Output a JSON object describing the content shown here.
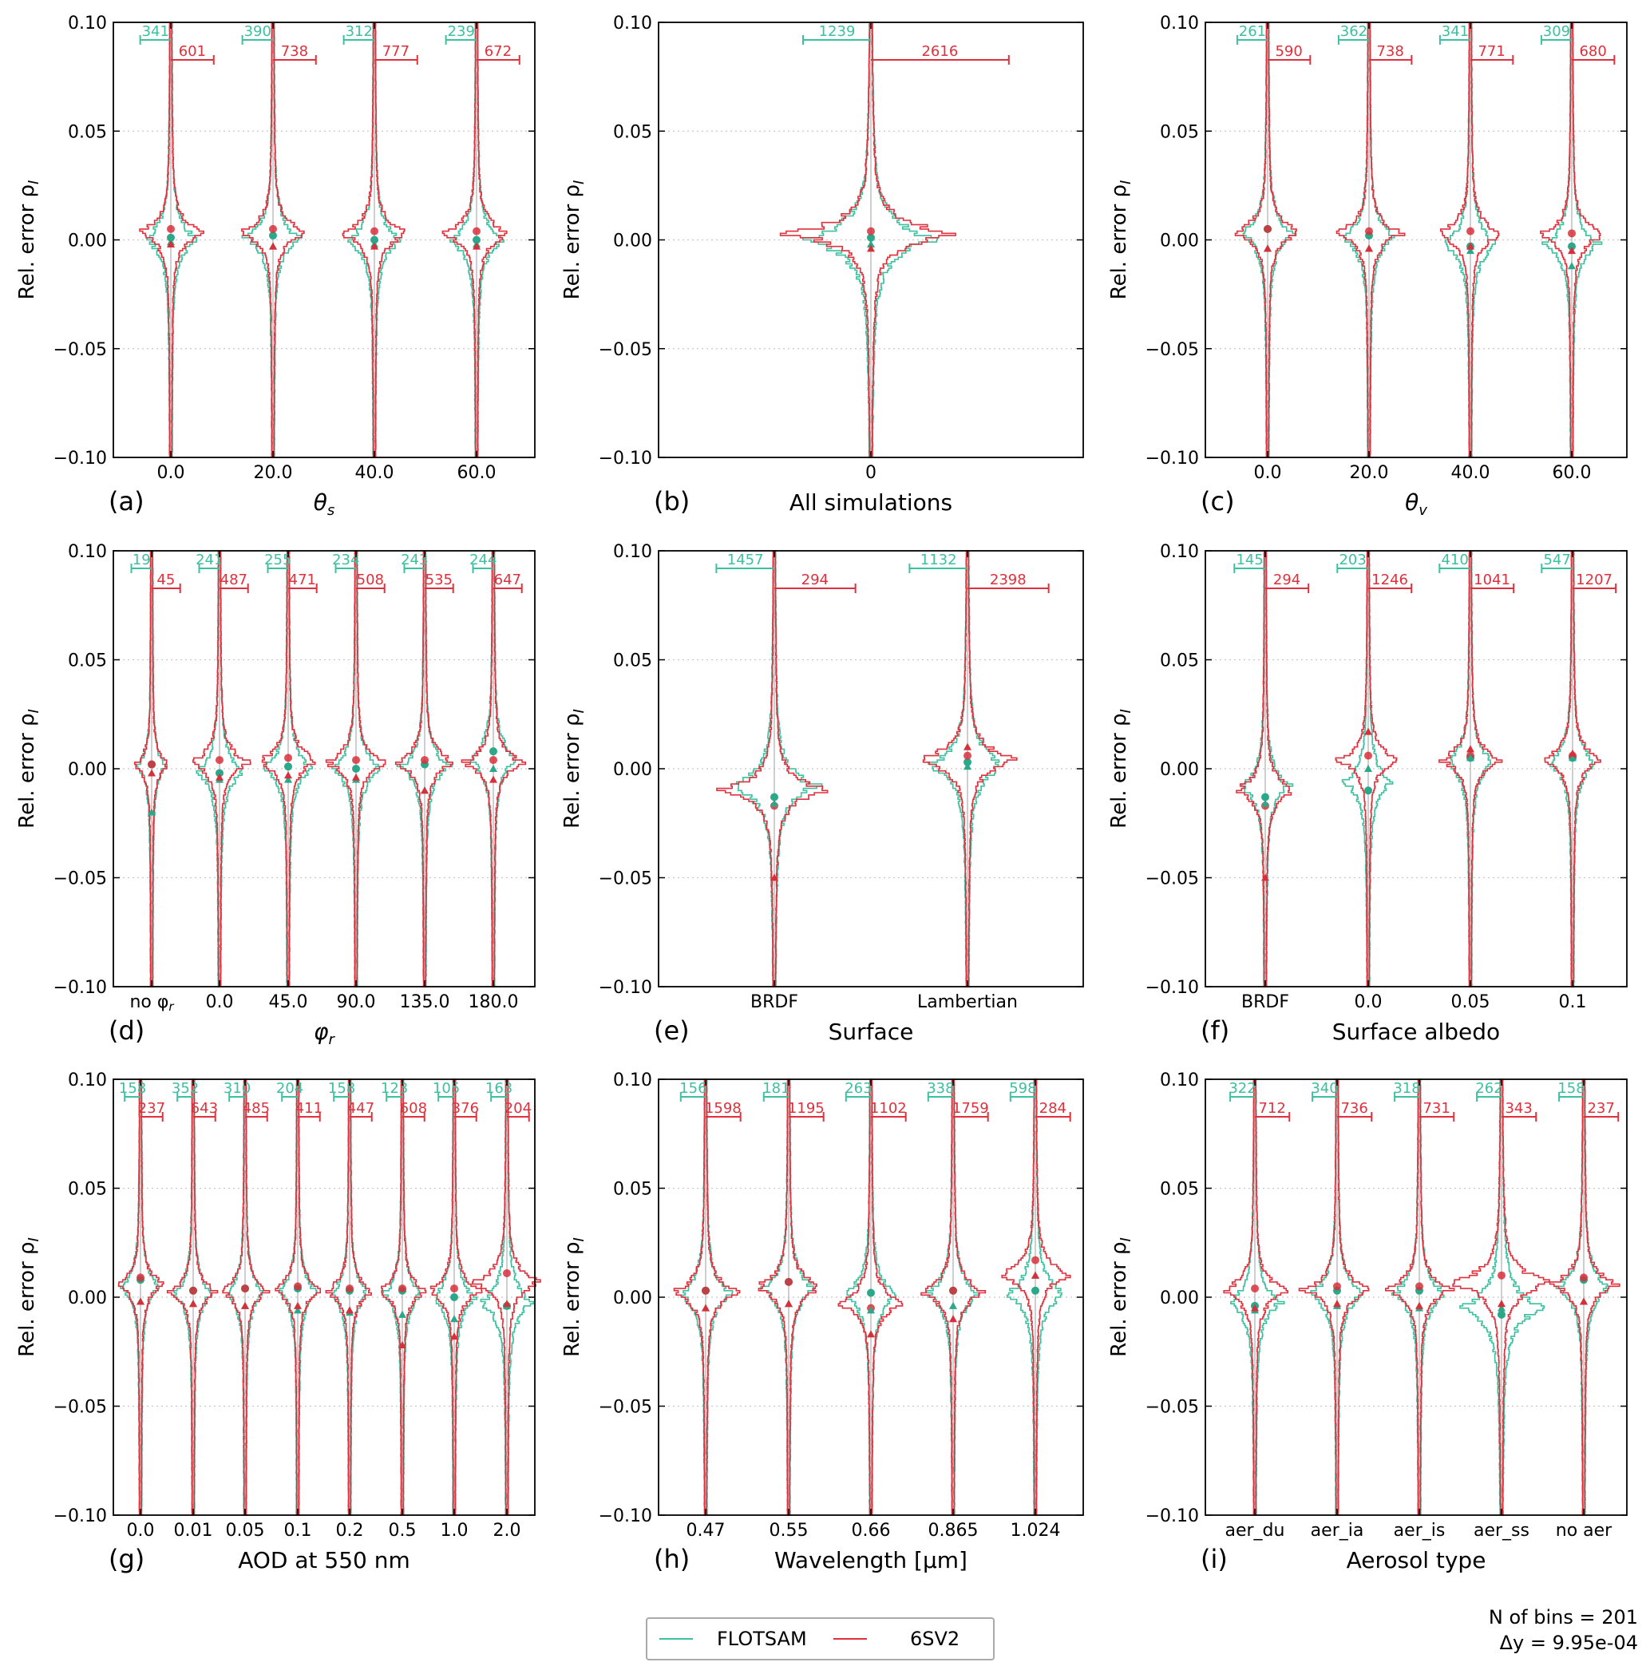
{
  "colors": {
    "flotsam": "#3cc0a0",
    "sv2": "#e0303c",
    "dot_f": "#2aa889",
    "dot_s": "#d8303a"
  },
  "legend": {
    "flotsam": "FLOTSAM",
    "sv2": "6SV2"
  },
  "info": {
    "bins": "N of bins = 201",
    "dy": "Δy =  9.95e-04"
  },
  "chart_data": [
    {
      "type": "violin",
      "letter": "(a)",
      "xlabel": "θs",
      "xlabel_main": "θ",
      "xlabel_sub": "s",
      "ylabel": "Rel. error ρI",
      "ylim": [
        -0.1,
        0.1
      ],
      "yticks": [
        "0.10",
        "0.05",
        "0.00",
        "−0.05",
        "−0.10"
      ],
      "categories": [
        "0.0",
        "20.0",
        "40.0",
        "60.0"
      ],
      "flotsam_counts": [
        "341",
        "390",
        "312",
        "239"
      ],
      "sv2_counts": [
        "601",
        "738",
        "777",
        "672"
      ],
      "flotsam_mean": [
        0.001,
        0.002,
        0.0,
        0.0
      ],
      "flotsam_median": [
        -0.001,
        -0.003,
        -0.002,
        -0.002
      ],
      "sv2_mean": [
        0.005,
        0.005,
        0.004,
        0.004
      ],
      "sv2_median": [
        -0.002,
        -0.003,
        -0.003,
        -0.003
      ]
    },
    {
      "type": "violin",
      "letter": "(b)",
      "xlabel": "All simulations",
      "ylabel": "Rel. error ρI",
      "ylim": [
        -0.1,
        0.1
      ],
      "yticks": [
        "0.10",
        "0.05",
        "0.00",
        "−0.05",
        "−0.10"
      ],
      "categories": [
        "0"
      ],
      "flotsam_counts": [
        "1239"
      ],
      "sv2_counts": [
        "2616"
      ],
      "flotsam_mean": [
        0.001
      ],
      "flotsam_median": [
        -0.002
      ],
      "sv2_mean": [
        0.004
      ],
      "sv2_median": [
        -0.004
      ]
    },
    {
      "type": "violin",
      "letter": "(c)",
      "xlabel": "θv",
      "xlabel_main": "θ",
      "xlabel_sub": "v",
      "ylabel": "Rel. error ρI",
      "ylim": [
        -0.1,
        0.1
      ],
      "yticks": [
        "0.10",
        "0.05",
        "0.00",
        "−0.05",
        "−0.10"
      ],
      "categories": [
        "0.0",
        "20.0",
        "40.0",
        "60.0"
      ],
      "flotsam_counts": [
        "261",
        "362",
        "341",
        "309"
      ],
      "sv2_counts": [
        "590",
        "738",
        "771",
        "680"
      ],
      "flotsam_mean": [
        0.005,
        0.002,
        -0.003,
        -0.003
      ],
      "flotsam_median": [
        -0.004,
        -0.004,
        -0.005,
        -0.012
      ],
      "sv2_mean": [
        0.005,
        0.004,
        0.004,
        0.003
      ],
      "sv2_median": [
        -0.004,
        -0.004,
        -0.003,
        -0.005
      ]
    },
    {
      "type": "violin",
      "letter": "(d)",
      "xlabel": "φr",
      "xlabel_main": "φ",
      "xlabel_sub": "r",
      "ylabel": "Rel. error ρI",
      "ylim": [
        -0.1,
        0.1
      ],
      "yticks": [
        "0.10",
        "0.05",
        "0.00",
        "−0.05",
        "−0.10"
      ],
      "categories": [
        "no φr",
        "0.0",
        "45.0",
        "90.0",
        "135.0",
        "180.0"
      ],
      "flotsam_counts": [
        "19",
        "241",
        "255",
        "234",
        "243",
        "244"
      ],
      "sv2_counts": [
        "45",
        "487",
        "471",
        "508",
        "535",
        "647"
      ],
      "flotsam_mean": [
        0.002,
        -0.002,
        0.001,
        0.0,
        0.002,
        0.008
      ],
      "flotsam_median": [
        -0.02,
        -0.005,
        -0.005,
        -0.005,
        -0.01,
        0.0
      ],
      "sv2_mean": [
        0.002,
        0.004,
        0.005,
        0.004,
        0.004,
        0.004
      ],
      "sv2_median": [
        -0.002,
        -0.004,
        -0.003,
        -0.004,
        -0.01,
        -0.005
      ]
    },
    {
      "type": "violin",
      "letter": "(e)",
      "xlabel": "Surface",
      "ylabel": "Rel. error ρI",
      "ylim": [
        -0.1,
        0.1
      ],
      "yticks": [
        "0.10",
        "0.05",
        "0.00",
        "−0.05",
        "−0.10"
      ],
      "categories": [
        "BRDF",
        "Lambertian"
      ],
      "flotsam_counts": [
        "1457",
        "1132"
      ],
      "sv2_counts": [
        "294",
        "2398"
      ],
      "flotsam_mean": [
        -0.013,
        0.003
      ],
      "flotsam_median": [
        -0.016,
        0.001
      ],
      "sv2_mean": [
        -0.017,
        0.006
      ],
      "sv2_median": [
        -0.05,
        0.01
      ]
    },
    {
      "type": "violin",
      "letter": "(f)",
      "xlabel": "Surface albedo",
      "ylabel": "Rel. error ρI",
      "ylim": [
        -0.1,
        0.1
      ],
      "yticks": [
        "0.10",
        "0.05",
        "0.00",
        "−0.05",
        "−0.10"
      ],
      "categories": [
        "BRDF",
        "0.0",
        "0.05",
        "0.1"
      ],
      "flotsam_counts": [
        "145",
        "203",
        "410",
        "547"
      ],
      "sv2_counts": [
        "294",
        "1246",
        "1041",
        "1207"
      ],
      "flotsam_mean": [
        -0.013,
        -0.01,
        0.005,
        0.005
      ],
      "flotsam_median": [
        -0.016,
        0.0,
        0.005,
        0.005
      ],
      "sv2_mean": [
        -0.017,
        0.006,
        0.006,
        0.006
      ],
      "sv2_median": [
        -0.05,
        0.017,
        0.009,
        0.007
      ]
    },
    {
      "type": "violin",
      "letter": "(g)",
      "xlabel": "AOD at 550 nm",
      "ylabel": "Rel. error ρI",
      "ylim": [
        -0.1,
        0.1
      ],
      "yticks": [
        "0.10",
        "0.05",
        "0.00",
        "−0.05",
        "−0.10"
      ],
      "categories": [
        "0.0",
        "0.01",
        "0.05",
        "0.1",
        "0.2",
        "0.5",
        "1.0",
        "2.0"
      ],
      "flotsam_counts": [
        "158",
        "352",
        "310",
        "204",
        "158",
        "123",
        "105",
        "163"
      ],
      "sv2_counts": [
        "237",
        "643",
        "485",
        "411",
        "447",
        "608",
        "376",
        "204"
      ],
      "flotsam_mean": [
        0.008,
        0.003,
        0.004,
        0.004,
        0.003,
        0.003,
        0.0,
        -0.004
      ],
      "flotsam_median": [
        -0.002,
        -0.003,
        -0.004,
        -0.006,
        -0.007,
        -0.008,
        -0.01,
        -0.004
      ],
      "sv2_mean": [
        0.009,
        0.003,
        0.004,
        0.005,
        0.004,
        0.004,
        0.004,
        0.011
      ],
      "sv2_median": [
        -0.002,
        -0.003,
        -0.004,
        -0.004,
        -0.006,
        -0.022,
        -0.018,
        -0.003
      ]
    },
    {
      "type": "violin",
      "letter": "(h)",
      "xlabel": "Wavelength [μm]",
      "ylabel": "Rel. error ρI",
      "ylim": [
        -0.1,
        0.1
      ],
      "yticks": [
        "0.10",
        "0.05",
        "0.00",
        "−0.05",
        "−0.10"
      ],
      "categories": [
        "0.47",
        "0.55",
        "0.66",
        "0.865",
        "1.024"
      ],
      "flotsam_counts": [
        "156",
        "181",
        "263",
        "338",
        "598"
      ],
      "sv2_counts": [
        "1598",
        "1195",
        "1102",
        "1759",
        "284"
      ],
      "flotsam_mean": [
        0.003,
        0.007,
        0.002,
        0.003,
        0.003
      ],
      "flotsam_median": [
        -0.005,
        -0.003,
        -0.006,
        -0.004,
        0.01
      ],
      "sv2_mean": [
        0.003,
        0.007,
        -0.005,
        0.003,
        0.017
      ],
      "sv2_median": [
        -0.005,
        -0.003,
        -0.017,
        -0.01,
        0.01
      ]
    },
    {
      "type": "violin",
      "letter": "(i)",
      "xlabel": "Aerosol type",
      "ylabel": "Rel. error ρI",
      "ylim": [
        -0.1,
        0.1
      ],
      "yticks": [
        "0.10",
        "0.05",
        "0.00",
        "−0.05",
        "−0.10"
      ],
      "categories": [
        "aer_du",
        "aer_ia",
        "aer_is",
        "aer_ss",
        "no aer"
      ],
      "flotsam_counts": [
        "322",
        "340",
        "318",
        "262",
        "158"
      ],
      "sv2_counts": [
        "712",
        "736",
        "731",
        "343",
        "237"
      ],
      "flotsam_mean": [
        -0.004,
        0.003,
        0.003,
        -0.008,
        0.008
      ],
      "flotsam_median": [
        -0.006,
        -0.004,
        -0.005,
        -0.005,
        -0.002
      ],
      "sv2_mean": [
        0.004,
        0.005,
        0.005,
        0.01,
        0.009
      ],
      "sv2_median": [
        -0.005,
        -0.003,
        -0.004,
        -0.003,
        -0.002
      ]
    }
  ]
}
